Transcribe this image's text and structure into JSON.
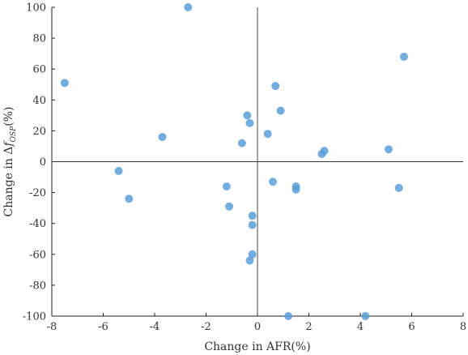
{
  "chart_data": {
    "type": "scatter",
    "xlabel": "Change in AFR(%)",
    "ylabel": {
      "prefix": "Change in Δ",
      "symbol": "f",
      "subscript": "OSP",
      "suffix": "(%)"
    },
    "xlim": [
      -8,
      8
    ],
    "ylim": [
      -100,
      100
    ],
    "xticks": [
      "-8",
      "-6",
      "-4",
      "-2",
      "0",
      "2",
      "4",
      "6",
      "8"
    ],
    "yticks": [
      "100",
      "80",
      "60",
      "40",
      "20",
      "0",
      "-20",
      "-40",
      "-60",
      "-80",
      "-100"
    ],
    "grid": false,
    "reference_lines": [
      "x=0",
      "y=0"
    ],
    "marker_color": "#5b9fd7",
    "points": [
      {
        "x": -2.7,
        "y": 100
      },
      {
        "x": -7.5,
        "y": 51
      },
      {
        "x": -5.4,
        "y": -6
      },
      {
        "x": -5.0,
        "y": -24
      },
      {
        "x": -3.7,
        "y": 16
      },
      {
        "x": -1.2,
        "y": -16
      },
      {
        "x": -1.1,
        "y": -29
      },
      {
        "x": -0.6,
        "y": 12
      },
      {
        "x": -0.4,
        "y": 30
      },
      {
        "x": -0.3,
        "y": 25
      },
      {
        "x": -0.2,
        "y": -35
      },
      {
        "x": -0.2,
        "y": -41
      },
      {
        "x": -0.2,
        "y": -60
      },
      {
        "x": -0.3,
        "y": -64
      },
      {
        "x": 0.4,
        "y": 18
      },
      {
        "x": 0.7,
        "y": 49
      },
      {
        "x": 0.9,
        "y": 33
      },
      {
        "x": 0.6,
        "y": -13
      },
      {
        "x": 1.5,
        "y": -16
      },
      {
        "x": 1.5,
        "y": -18
      },
      {
        "x": 1.2,
        "y": -100
      },
      {
        "x": 2.5,
        "y": 5
      },
      {
        "x": 2.6,
        "y": 7
      },
      {
        "x": 4.2,
        "y": -100
      },
      {
        "x": 5.1,
        "y": 8
      },
      {
        "x": 5.5,
        "y": -17
      },
      {
        "x": 5.7,
        "y": 68
      }
    ]
  }
}
